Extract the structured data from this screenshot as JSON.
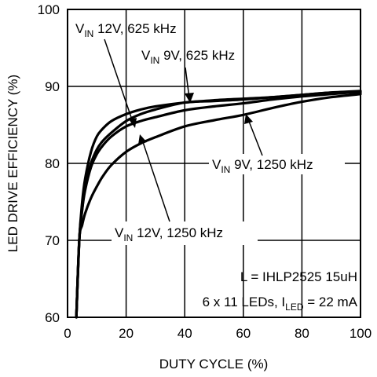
{
  "chart_data": {
    "type": "line",
    "xlabel": "DUTY CYCLE (%)",
    "ylabel": "LED DRIVE EFFICIENCY (%)",
    "xlim": [
      0,
      100
    ],
    "ylim": [
      60,
      100
    ],
    "xticks": [
      0,
      20,
      40,
      60,
      80,
      100
    ],
    "yticks": [
      60,
      70,
      80,
      90,
      100
    ],
    "grid": true,
    "series": [
      {
        "name": "VIN 12V, 625 kHz",
        "x": [
          3,
          4,
          5,
          6,
          8,
          10,
          12,
          15,
          20,
          25,
          30,
          40,
          50,
          60,
          70,
          80,
          90,
          100
        ],
        "y": [
          60,
          70,
          75,
          78,
          81.5,
          83.5,
          84.5,
          85.5,
          86.4,
          87,
          87.4,
          87.9,
          88.2,
          88.4,
          88.6,
          88.9,
          89.2,
          89.2
        ]
      },
      {
        "name": "VIN 9V, 625 kHz",
        "x": [
          3,
          4,
          5,
          6,
          8,
          10,
          12,
          15,
          20,
          25,
          30,
          40,
          50,
          60,
          70,
          80,
          90,
          100
        ],
        "y": [
          60,
          70,
          74,
          77,
          80,
          81.8,
          82.9,
          84,
          85.5,
          86.4,
          87,
          87.9,
          88.1,
          88.3,
          88.6,
          88.9,
          89.2,
          89.4
        ]
      },
      {
        "name": "VIN 12V, 1250 kHz",
        "x": [
          3,
          4,
          5,
          6,
          8,
          10,
          12,
          15,
          20,
          25,
          30,
          40,
          50,
          60,
          70,
          80,
          90,
          100
        ],
        "y": [
          60,
          70,
          74,
          76.5,
          79.5,
          81.2,
          82.3,
          83.5,
          84.8,
          85.5,
          86,
          86.9,
          87.4,
          87.8,
          88.3,
          88.7,
          89,
          89.3
        ]
      },
      {
        "name": "VIN 9V, 1250 kHz",
        "x": [
          3,
          4,
          5,
          6,
          8,
          10,
          12,
          15,
          20,
          25,
          30,
          40,
          50,
          60,
          70,
          80,
          90,
          100
        ],
        "y": [
          60,
          70,
          72,
          73.5,
          75.5,
          77,
          78.3,
          79.8,
          81.5,
          82.6,
          83.4,
          84.8,
          85.6,
          86.3,
          87.2,
          88,
          88.6,
          89
        ]
      }
    ],
    "labels": [
      {
        "id": "a",
        "main": "V",
        "sub": "IN",
        "rest": " 12V, 625 kHz"
      },
      {
        "id": "b",
        "main": "V",
        "sub": "IN",
        "rest": " 9V, 625 kHz"
      },
      {
        "id": "c",
        "main": "V",
        "sub": "IN",
        "rest": " 9V, 1250 kHz"
      },
      {
        "id": "d",
        "main": "V",
        "sub": "IN",
        "rest": " 12V, 1250 kHz"
      }
    ],
    "notes": {
      "line1": "L = IHLP2525 15uH",
      "line2_main": "6 x 11 LEDs, I",
      "line2_sub": "LED",
      "line2_rest": " = 22 mA"
    }
  }
}
